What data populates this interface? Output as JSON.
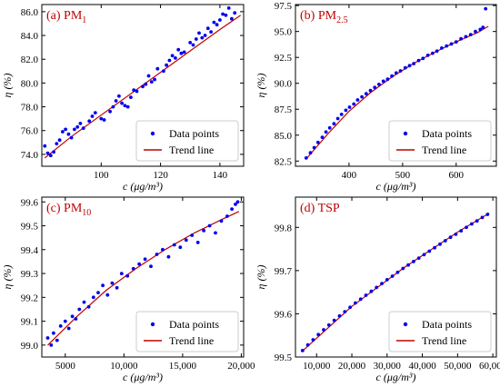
{
  "chart_data": [
    {
      "type": "scatter",
      "panel": "(a) PM",
      "panel_sub": "1",
      "xlabel": "c (μg/m³)",
      "ylabel": "η (%)",
      "xlim": [
        80,
        148
      ],
      "ylim": [
        73.0,
        86.6
      ],
      "xticks": [
        100,
        120,
        140
      ],
      "xtick_labels": [
        "100",
        "120",
        "140"
      ],
      "yticks": [
        74.0,
        76.0,
        78.0,
        80.0,
        82.0,
        84.0,
        86.0
      ],
      "ytick_labels": [
        "74.0",
        "76.0",
        "78.0",
        "80.0",
        "82.0",
        "84.0",
        "86.0"
      ],
      "legend": [
        "Data points",
        "Trend line"
      ],
      "legend_position": "lower-right",
      "series": [
        {
          "name": "Data points",
          "x": [
            81,
            82,
            83,
            84,
            85,
            86,
            87,
            88,
            89,
            90,
            91,
            92,
            93,
            94,
            96,
            97,
            98,
            100,
            101,
            103,
            104,
            105,
            106,
            107,
            108,
            109,
            110,
            111,
            112,
            114,
            115,
            116,
            117,
            118,
            119,
            121,
            122,
            123,
            124,
            125,
            126,
            127,
            128,
            130,
            131,
            132,
            133,
            134,
            135,
            136,
            137,
            138,
            139,
            140,
            141,
            142,
            143,
            144,
            145
          ],
          "y": [
            74.7,
            74.1,
            73.9,
            74.2,
            74.9,
            75.2,
            75.9,
            76.1,
            75.7,
            75.4,
            76.1,
            76.3,
            76.6,
            76.2,
            76.8,
            77.2,
            77.5,
            77.0,
            76.9,
            77.6,
            78.0,
            78.5,
            78.9,
            78.3,
            78.1,
            78.0,
            78.8,
            79.4,
            79.3,
            79.7,
            79.9,
            80.6,
            80.1,
            80.3,
            81.2,
            81.0,
            81.5,
            81.9,
            82.3,
            82.1,
            82.8,
            82.5,
            82.6,
            83.4,
            83.2,
            83.7,
            84.2,
            83.8,
            84.0,
            84.6,
            84.3,
            85.1,
            84.9,
            85.3,
            85.8,
            85.7,
            86.3,
            85.4,
            85.9
          ]
        },
        {
          "name": "Trend line",
          "x": [
            81,
            90,
            100,
            110,
            120,
            130,
            140,
            147
          ],
          "y": [
            73.7,
            75.5,
            77.3,
            79.1,
            80.9,
            82.7,
            84.5,
            85.7
          ]
        }
      ]
    },
    {
      "type": "scatter",
      "panel": "(b) PM",
      "panel_sub": "2.5",
      "xlabel": "c (μg/m³)",
      "ylabel": "η (%)",
      "xlim": [
        300,
        675
      ],
      "ylim": [
        82.0,
        97.6
      ],
      "xticks": [
        400,
        500,
        600
      ],
      "xtick_labels": [
        "400",
        "500",
        "600"
      ],
      "yticks": [
        82.5,
        85.0,
        87.5,
        90.0,
        92.5,
        95.0,
        97.5
      ],
      "ytick_labels": [
        "82.5",
        "85.0",
        "87.5",
        "90.0",
        "92.5",
        "95.0",
        "97.5"
      ],
      "legend": [
        "Data points",
        "Trend line"
      ],
      "legend_position": "lower-right",
      "series": [
        {
          "name": "Data points",
          "x": [
            320,
            328,
            335,
            342,
            350,
            357,
            364,
            372,
            379,
            386,
            394,
            401,
            409,
            416,
            424,
            432,
            440,
            448,
            456,
            464,
            472,
            480,
            488,
            496,
            505,
            513,
            521,
            530,
            538,
            547,
            556,
            564,
            573,
            582,
            591,
            600,
            609,
            618,
            627,
            636,
            645,
            650,
            655
          ],
          "y": [
            82.8,
            83.3,
            83.8,
            84.3,
            84.8,
            85.3,
            85.7,
            86.1,
            86.6,
            87.0,
            87.4,
            87.7,
            88.0,
            88.4,
            88.7,
            89.0,
            89.3,
            89.6,
            89.9,
            90.2,
            90.4,
            90.7,
            91.0,
            91.2,
            91.5,
            91.7,
            91.9,
            92.2,
            92.4,
            92.7,
            92.9,
            93.1,
            93.4,
            93.6,
            93.8,
            94.0,
            94.3,
            94.5,
            94.7,
            95.0,
            95.2,
            95.4,
            97.2
          ]
        },
        {
          "name": "Trend line",
          "x": [
            320,
            360,
            400,
            440,
            480,
            520,
            560,
            600,
            640,
            660
          ],
          "y": [
            82.7,
            85.1,
            87.3,
            89.1,
            90.6,
            91.9,
            93.0,
            94.0,
            94.9,
            95.5
          ]
        }
      ]
    },
    {
      "type": "scatter",
      "panel": "(c) PM",
      "panel_sub": "10",
      "xlabel": "c (μg/m³)",
      "ylabel": "η (%)",
      "xlim": [
        3000,
        20200
      ],
      "ylim": [
        98.95,
        99.62
      ],
      "xticks": [
        5000,
        10000,
        15000,
        20000
      ],
      "xtick_labels": [
        "5000",
        "10,000",
        "15,000",
        "20,000"
      ],
      "yticks": [
        99.0,
        99.1,
        99.2,
        99.3,
        99.4,
        99.5,
        99.6
      ],
      "ytick_labels": [
        "99.0",
        "99.1",
        "99.2",
        "99.3",
        "99.4",
        "99.5",
        "99.6"
      ],
      "legend": [
        "Data points",
        "Trend line"
      ],
      "legend_position": "lower-right",
      "series": [
        {
          "name": "Data points",
          "x": [
            3500,
            3800,
            4000,
            4300,
            4600,
            5000,
            5300,
            5600,
            5900,
            6200,
            6600,
            7000,
            7400,
            7800,
            8200,
            8600,
            9000,
            9400,
            9800,
            10300,
            10800,
            11300,
            11800,
            12300,
            12800,
            13300,
            13800,
            14300,
            14800,
            15300,
            15800,
            16300,
            16800,
            17300,
            17800,
            18300,
            18800,
            19200,
            19500,
            19700
          ],
          "y": [
            99.03,
            99.0,
            99.05,
            99.02,
            99.08,
            99.1,
            99.07,
            99.12,
            99.11,
            99.15,
            99.18,
            99.16,
            99.2,
            99.22,
            99.25,
            99.21,
            99.26,
            99.24,
            99.3,
            99.29,
            99.32,
            99.34,
            99.36,
            99.33,
            99.38,
            99.4,
            99.37,
            99.42,
            99.41,
            99.44,
            99.46,
            99.43,
            99.48,
            99.5,
            99.47,
            99.52,
            99.54,
            99.57,
            99.59,
            99.6
          ]
        },
        {
          "name": "Trend line",
          "x": [
            3500,
            6000,
            8500,
            11000,
            13500,
            16000,
            18500,
            19800
          ],
          "y": [
            99.0,
            99.12,
            99.23,
            99.32,
            99.4,
            99.47,
            99.53,
            99.56
          ]
        }
      ]
    },
    {
      "type": "scatter",
      "panel": "(d) TSP",
      "panel_sub": "",
      "xlabel": "c (μg/m³)",
      "ylabel": "η (%)",
      "xlim": [
        4000,
        61000
      ],
      "ylim": [
        99.5,
        99.87
      ],
      "xticks": [
        10000,
        20000,
        30000,
        40000,
        50000,
        60000
      ],
      "xtick_labels": [
        "10,000",
        "20,000",
        "30,000",
        "40,000",
        "50,000",
        "60,000"
      ],
      "yticks": [
        99.5,
        99.6,
        99.7,
        99.8
      ],
      "ytick_labels": [
        "99.5",
        "99.6",
        "99.7",
        "99.8"
      ],
      "legend": [
        "Data points",
        "Trend line"
      ],
      "legend_position": "lower-right",
      "series": [
        {
          "name": "Data points",
          "x": [
            6000,
            7500,
            9000,
            10500,
            12000,
            13500,
            15000,
            16500,
            18000,
            19500,
            21000,
            22500,
            24000,
            25500,
            27000,
            28500,
            30000,
            31500,
            33000,
            34500,
            36000,
            37500,
            39000,
            40500,
            42000,
            43500,
            45000,
            46500,
            48000,
            49500,
            51000,
            52500,
            54000,
            55500,
            57000,
            58500
          ],
          "y": [
            99.515,
            99.528,
            99.54,
            99.552,
            99.563,
            99.574,
            99.585,
            99.595,
            99.605,
            99.615,
            99.625,
            99.634,
            99.643,
            99.652,
            99.661,
            99.67,
            99.679,
            99.687,
            99.696,
            99.705,
            99.713,
            99.721,
            99.729,
            99.737,
            99.745,
            99.753,
            99.761,
            99.769,
            99.777,
            99.784,
            99.792,
            99.8,
            99.808,
            99.815,
            99.823,
            99.83
          ]
        },
        {
          "name": "Trend line",
          "x": [
            6000,
            20000,
            35000,
            50000,
            59000
          ],
          "y": [
            99.514,
            99.617,
            99.708,
            99.789,
            99.833
          ]
        }
      ]
    }
  ],
  "colors": {
    "points": "#0000ee",
    "trend": "#c00000",
    "panel_label": "#c00000",
    "axis": "#000000"
  }
}
